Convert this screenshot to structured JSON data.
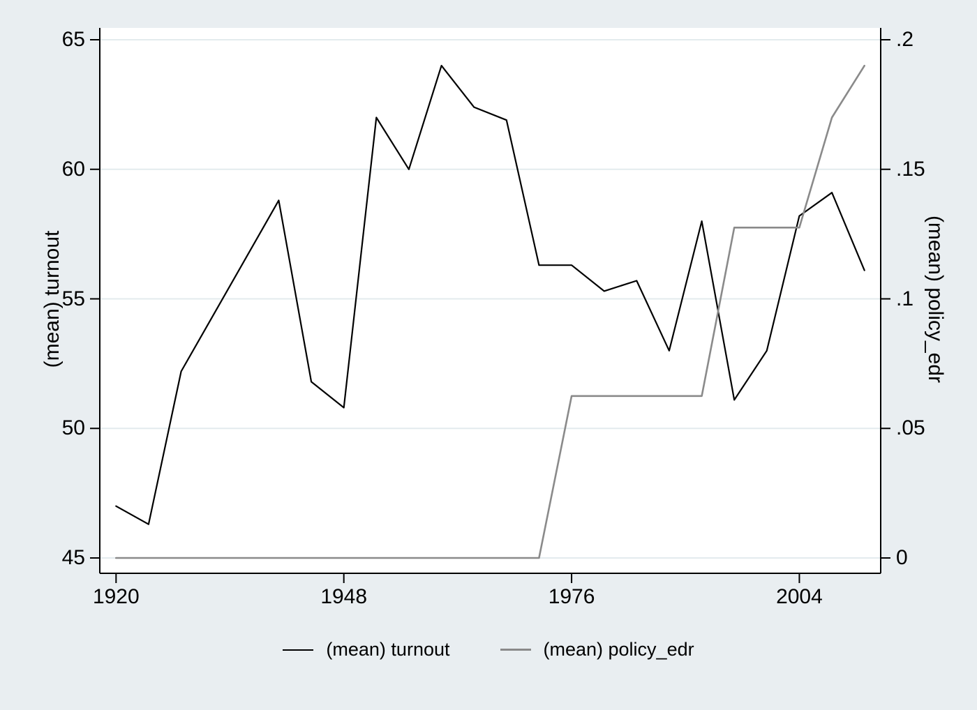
{
  "figure": {
    "background": "#e9eef1",
    "plot_background": "#ffffff",
    "grid_color": "#e3ebee",
    "axis_color": "#000000"
  },
  "chart_data": {
    "type": "line",
    "x": [
      1920,
      1924,
      1928,
      1932,
      1936,
      1940,
      1944,
      1948,
      1952,
      1956,
      1960,
      1964,
      1968,
      1972,
      1976,
      1980,
      1984,
      1988,
      1992,
      1996,
      2000,
      2004,
      2008,
      2012
    ],
    "series": [
      {
        "name": "(mean) turnout",
        "axis": "left",
        "color": "#000000",
        "width": 2.2,
        "values": [
          47.0,
          46.3,
          52.2,
          54.4,
          56.6,
          58.8,
          51.8,
          50.8,
          62.0,
          60.0,
          64.0,
          62.4,
          61.9,
          56.3,
          56.3,
          55.3,
          55.7,
          53.0,
          58.0,
          51.1,
          53.0,
          58.2,
          59.1,
          56.1
        ]
      },
      {
        "name": "(mean) policy_edr",
        "axis": "right",
        "color": "#8a8a8a",
        "width": 2.6,
        "values": [
          0,
          0,
          0,
          0,
          0,
          0,
          0,
          0,
          0,
          0,
          0,
          0,
          0,
          0,
          0.0625,
          0.0625,
          0.0625,
          0.0625,
          0.0625,
          0.1275,
          0.1275,
          0.1275,
          0.17,
          0.19
        ]
      }
    ],
    "left_axis": {
      "title": "(mean) turnout",
      "lim": [
        45,
        65
      ],
      "ticks": [
        45,
        50,
        55,
        60,
        65
      ],
      "tick_labels": [
        "45",
        "50",
        "55",
        "60",
        "65"
      ]
    },
    "right_axis": {
      "title": "(mean) policy_edr",
      "lim": [
        0,
        0.2
      ],
      "ticks": [
        0,
        0.05,
        0.1,
        0.15,
        0.2
      ],
      "tick_labels": [
        "0",
        ".05",
        ".1",
        ".15",
        ".2"
      ]
    },
    "x_axis": {
      "lim": [
        1918,
        2014
      ],
      "ticks": [
        1920,
        1948,
        1976,
        2004
      ],
      "tick_labels": [
        "1920",
        "1948",
        "1976",
        "2004"
      ]
    },
    "grid": true,
    "legend_position": "bottom",
    "legend": [
      "(mean) turnout",
      "(mean) policy_edr"
    ]
  }
}
